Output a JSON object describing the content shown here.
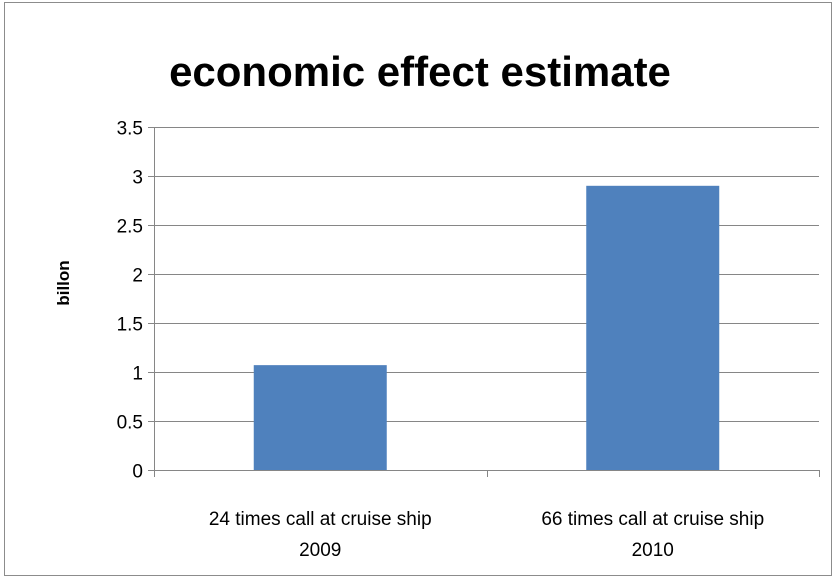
{
  "chart_data": {
    "type": "bar",
    "title": "economic effect estimate",
    "xlabel": "",
    "ylabel": "billon",
    "categories": [
      [
        "24 times call at cruise ship",
        "2009"
      ],
      [
        "66 times call at cruise ship",
        "2010"
      ]
    ],
    "values": [
      1.07,
      2.9
    ],
    "ylim": [
      0,
      3.5
    ],
    "yticks": [
      "0",
      "0.5",
      "1",
      "1.5",
      "2",
      "2.5",
      "3",
      "3.5"
    ],
    "grid": true,
    "legend": "none",
    "bar_color": "#4f81bd",
    "grid_color": "#868686",
    "axis_color": "#868686"
  }
}
